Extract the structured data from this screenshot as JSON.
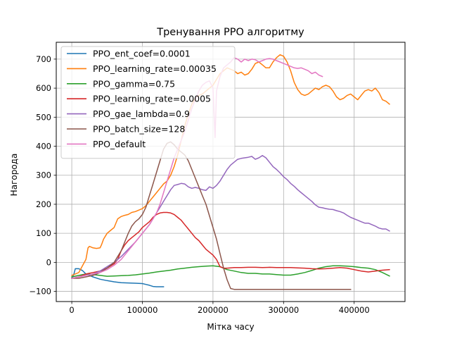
{
  "chart_data": {
    "type": "line",
    "title": "Тренування PPO алгоритму",
    "xlabel": "Мітка часу",
    "ylabel": "Нагорода",
    "xlim": [
      -22000,
      472000
    ],
    "ylim": [
      -135,
      758
    ],
    "xticks": [
      0,
      100000,
      200000,
      300000,
      400000
    ],
    "xtick_labels": [
      "0",
      "100000",
      "200000",
      "300000",
      "400000"
    ],
    "yticks": [
      -100,
      0,
      100,
      200,
      300,
      400,
      500,
      600,
      700
    ],
    "ytick_labels": [
      "−100",
      "0",
      "100",
      "200",
      "300",
      "400",
      "500",
      "600",
      "700"
    ],
    "grid": true,
    "legend_position": "upper-left",
    "series": [
      {
        "name": "PPO_ent_coef=0.0001",
        "color": "#1f77b4",
        "x": [
          0,
          3000,
          5000,
          10000,
          15000,
          20000,
          30000,
          40000,
          50000,
          60000,
          70000,
          80000,
          90000,
          100000,
          105000,
          110000,
          115000,
          120000,
          130000
        ],
        "y": [
          -55,
          -40,
          -22,
          -22,
          -28,
          -40,
          -50,
          -58,
          -63,
          -67,
          -70,
          -71,
          -72,
          -73,
          -76,
          -79,
          -83,
          -84,
          -84
        ]
      },
      {
        "name": "PPO_learning_rate=0.00035",
        "color": "#ff7f0e",
        "x": [
          0,
          10000,
          20000,
          23000,
          25000,
          30000,
          35000,
          40000,
          42000,
          45000,
          50000,
          55000,
          60000,
          65000,
          70000,
          75000,
          80000,
          85000,
          90000,
          95000,
          100000,
          105000,
          110000,
          115000,
          120000,
          125000,
          130000,
          135000,
          140000,
          145000,
          150000,
          155000,
          160000,
          165000,
          170000,
          175000,
          180000,
          185000,
          190000,
          195000,
          200000,
          205000,
          210000,
          215000,
          220000,
          225000,
          230000,
          235000,
          240000,
          245000,
          250000,
          255000,
          260000,
          265000,
          270000,
          275000,
          280000,
          285000,
          290000,
          295000,
          300000,
          305000,
          310000,
          315000,
          320000,
          325000,
          330000,
          335000,
          340000,
          345000,
          350000,
          355000,
          360000,
          365000,
          370000,
          375000,
          380000,
          385000,
          390000,
          395000,
          400000,
          405000,
          410000,
          415000,
          420000,
          425000,
          430000,
          435000,
          440000,
          445000,
          450000
        ],
        "y": [
          -45,
          -35,
          10,
          50,
          55,
          50,
          48,
          50,
          60,
          80,
          100,
          110,
          120,
          150,
          158,
          162,
          165,
          172,
          175,
          180,
          185,
          195,
          210,
          225,
          240,
          255,
          270,
          280,
          300,
          330,
          370,
          420,
          470,
          510,
          545,
          565,
          575,
          580,
          590,
          600,
          610,
          630,
          650,
          660,
          670,
          665,
          660,
          650,
          655,
          645,
          650,
          665,
          685,
          690,
          680,
          670,
          670,
          690,
          705,
          715,
          710,
          690,
          660,
          620,
          595,
          580,
          575,
          580,
          590,
          600,
          595,
          605,
          610,
          605,
          590,
          570,
          560,
          565,
          575,
          580,
          570,
          560,
          575,
          590,
          595,
          590,
          600,
          585,
          560,
          555,
          545
        ]
      },
      {
        "name": "PPO_gamma=0.75",
        "color": "#2ca02c",
        "x": [
          0,
          10000,
          20000,
          30000,
          40000,
          50000,
          60000,
          70000,
          80000,
          90000,
          100000,
          110000,
          120000,
          130000,
          140000,
          150000,
          160000,
          170000,
          180000,
          190000,
          200000,
          210000,
          220000,
          230000,
          240000,
          250000,
          260000,
          270000,
          280000,
          290000,
          300000,
          310000,
          320000,
          330000,
          340000,
          350000,
          360000,
          370000,
          380000,
          390000,
          400000,
          410000,
          420000,
          430000,
          440000,
          450000
        ],
        "y": [
          -50,
          -45,
          -40,
          -42,
          -45,
          -48,
          -47,
          -46,
          -45,
          -43,
          -40,
          -37,
          -33,
          -30,
          -27,
          -23,
          -20,
          -17,
          -15,
          -13,
          -12,
          -15,
          -25,
          -30,
          -35,
          -38,
          -38,
          -40,
          -40,
          -42,
          -44,
          -44,
          -40,
          -35,
          -28,
          -20,
          -15,
          -12,
          -12,
          -13,
          -15,
          -18,
          -20,
          -25,
          -35,
          -47
        ]
      },
      {
        "name": "PPO_learning_rate=0.0005",
        "color": "#d62728",
        "x": [
          0,
          10000,
          20000,
          30000,
          40000,
          50000,
          60000,
          65000,
          70000,
          75000,
          80000,
          85000,
          90000,
          95000,
          100000,
          105000,
          110000,
          115000,
          120000,
          125000,
          130000,
          135000,
          140000,
          145000,
          150000,
          155000,
          160000,
          165000,
          170000,
          175000,
          180000,
          185000,
          190000,
          195000,
          200000,
          205000,
          210000,
          215000,
          220000,
          230000,
          240000,
          250000,
          260000,
          270000,
          280000,
          290000,
          300000,
          310000,
          320000,
          330000,
          340000,
          350000,
          360000,
          370000,
          380000,
          390000,
          400000,
          410000,
          420000,
          430000,
          440000,
          450000
        ],
        "y": [
          -55,
          -50,
          -40,
          -35,
          -30,
          -20,
          -5,
          10,
          40,
          60,
          75,
          85,
          95,
          105,
          120,
          130,
          140,
          155,
          165,
          170,
          172,
          172,
          170,
          165,
          155,
          145,
          130,
          115,
          100,
          85,
          75,
          60,
          45,
          35,
          25,
          10,
          -15,
          -20,
          -20,
          -18,
          -18,
          -17,
          -17,
          -18,
          -17,
          -18,
          -18,
          -18,
          -19,
          -20,
          -22,
          -23,
          -22,
          -20,
          -18,
          -20,
          -25,
          -30,
          -33,
          -30,
          -27,
          -25
        ]
      },
      {
        "name": "PPO_gae_lambda=0.9",
        "color": "#9467bd",
        "x": [
          0,
          10000,
          20000,
          30000,
          40000,
          50000,
          60000,
          70000,
          80000,
          90000,
          100000,
          110000,
          115000,
          120000,
          125000,
          130000,
          135000,
          140000,
          145000,
          150000,
          155000,
          160000,
          165000,
          170000,
          175000,
          180000,
          185000,
          190000,
          195000,
          200000,
          205000,
          210000,
          215000,
          220000,
          225000,
          230000,
          235000,
          240000,
          245000,
          250000,
          255000,
          260000,
          265000,
          270000,
          275000,
          280000,
          285000,
          290000,
          295000,
          300000,
          305000,
          310000,
          315000,
          320000,
          325000,
          330000,
          335000,
          340000,
          345000,
          350000,
          355000,
          360000,
          365000,
          370000,
          375000,
          380000,
          385000,
          390000,
          395000,
          400000,
          405000,
          410000,
          415000,
          420000,
          425000,
          430000,
          435000,
          440000,
          445000,
          450000
        ],
        "y": [
          -55,
          -50,
          -45,
          -40,
          -30,
          -15,
          0,
          20,
          45,
          70,
          100,
          130,
          150,
          170,
          190,
          210,
          230,
          250,
          265,
          268,
          272,
          270,
          260,
          255,
          258,
          255,
          250,
          248,
          260,
          255,
          265,
          280,
          300,
          320,
          335,
          345,
          355,
          358,
          360,
          362,
          365,
          355,
          360,
          368,
          360,
          345,
          330,
          320,
          308,
          295,
          285,
          272,
          262,
          250,
          240,
          230,
          220,
          210,
          198,
          190,
          188,
          185,
          183,
          182,
          178,
          175,
          170,
          162,
          155,
          150,
          145,
          140,
          135,
          135,
          130,
          125,
          118,
          115,
          115,
          108
        ]
      },
      {
        "name": "PPO_batch_size=128",
        "color": "#8c564b",
        "x": [
          0,
          10000,
          20000,
          30000,
          40000,
          50000,
          60000,
          70000,
          75000,
          80000,
          85000,
          90000,
          95000,
          100000,
          105000,
          110000,
          115000,
          120000,
          125000,
          130000,
          135000,
          140000,
          145000,
          150000,
          155000,
          160000,
          165000,
          170000,
          175000,
          180000,
          185000,
          190000,
          195000,
          200000,
          205000,
          210000,
          215000,
          220000,
          225000,
          230000,
          240000,
          250000,
          260000,
          280000,
          300000,
          320000,
          340000,
          360000,
          380000,
          395000
        ],
        "y": [
          -55,
          -55,
          -50,
          -45,
          -35,
          -20,
          0,
          40,
          70,
          100,
          125,
          140,
          150,
          165,
          190,
          230,
          270,
          310,
          350,
          390,
          410,
          415,
          405,
          390,
          380,
          370,
          350,
          320,
          290,
          260,
          230,
          200,
          160,
          120,
          80,
          30,
          -20,
          -60,
          -90,
          -93,
          -93,
          -93,
          -93,
          -93,
          -93,
          -93,
          -93,
          -93,
          -93,
          -93
        ]
      },
      {
        "name": "PPO_default",
        "color": "#e377c2",
        "x": [
          0,
          10000,
          20000,
          30000,
          40000,
          50000,
          60000,
          70000,
          80000,
          90000,
          100000,
          110000,
          120000,
          125000,
          130000,
          135000,
          140000,
          145000,
          150000,
          155000,
          160000,
          165000,
          170000,
          175000,
          180000,
          185000,
          190000,
          195000,
          200000,
          203000,
          205000,
          210000,
          215000,
          220000,
          225000,
          230000,
          235000,
          240000,
          245000,
          250000,
          255000,
          260000,
          265000,
          270000,
          275000,
          280000,
          285000,
          290000,
          295000,
          300000,
          305000,
          310000,
          315000,
          320000,
          325000,
          330000,
          335000,
          340000,
          345000,
          350000,
          355000
        ],
        "y": [
          -55,
          -50,
          -45,
          -40,
          -35,
          -25,
          -10,
          10,
          40,
          70,
          100,
          130,
          170,
          200,
          240,
          280,
          320,
          360,
          390,
          420,
          450,
          490,
          530,
          560,
          590,
          610,
          620,
          625,
          600,
          430,
          590,
          640,
          670,
          680,
          690,
          705,
          700,
          690,
          700,
          695,
          700,
          698,
          690,
          695,
          700,
          702,
          700,
          695,
          690,
          685,
          680,
          675,
          670,
          668,
          670,
          665,
          660,
          650,
          655,
          645,
          640
        ]
      }
    ]
  }
}
